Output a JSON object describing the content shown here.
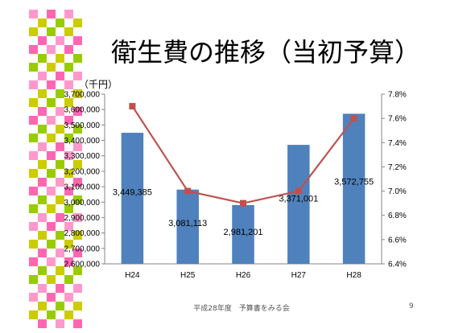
{
  "slide": {
    "title": "衛生費の推移（当初予算）",
    "footer": "平成28年度　予算書をみる会",
    "page_number": "9"
  },
  "colors": {
    "bar": "#4F81BD",
    "line": "#C0504D",
    "text": "#000000",
    "decor": [
      "#FF99CC",
      "#CCCC00",
      "#FF66B2",
      "#99CC00"
    ]
  },
  "chart_data": {
    "type": "bar",
    "categories": [
      "H24",
      "H25",
      "H26",
      "H27",
      "H28"
    ],
    "series": [
      {
        "values": [
          3449385,
          3081113,
          2981201,
          3371001,
          3572755
        ],
        "labels": [
          "3,449,385",
          "3,081,113",
          "2,981,201",
          "3,371,001",
          "3,572,755"
        ],
        "axis": "left"
      },
      {
        "type": "line",
        "values": [
          7.7,
          7.0,
          6.9,
          7.0,
          7.6
        ],
        "axis": "right"
      }
    ],
    "ylabel": "（千円）",
    "ylim": [
      2600000,
      3700000
    ],
    "ystep": 100000,
    "y_ticks": [
      "2,600,000",
      "2,700,000",
      "2,800,000",
      "2,900,000",
      "3,000,000",
      "3,100,000",
      "3,200,000",
      "3,300,000",
      "3,400,000",
      "3,500,000",
      "3,600,000",
      "3,700,000"
    ],
    "y2lim": [
      6.4,
      7.8
    ],
    "y2step": 0.2,
    "y2_ticks": [
      "6.4%",
      "6.6%",
      "6.8%",
      "7.0%",
      "7.2%",
      "7.4%",
      "7.6%",
      "7.8%"
    ],
    "grid": false,
    "legend": "none"
  }
}
